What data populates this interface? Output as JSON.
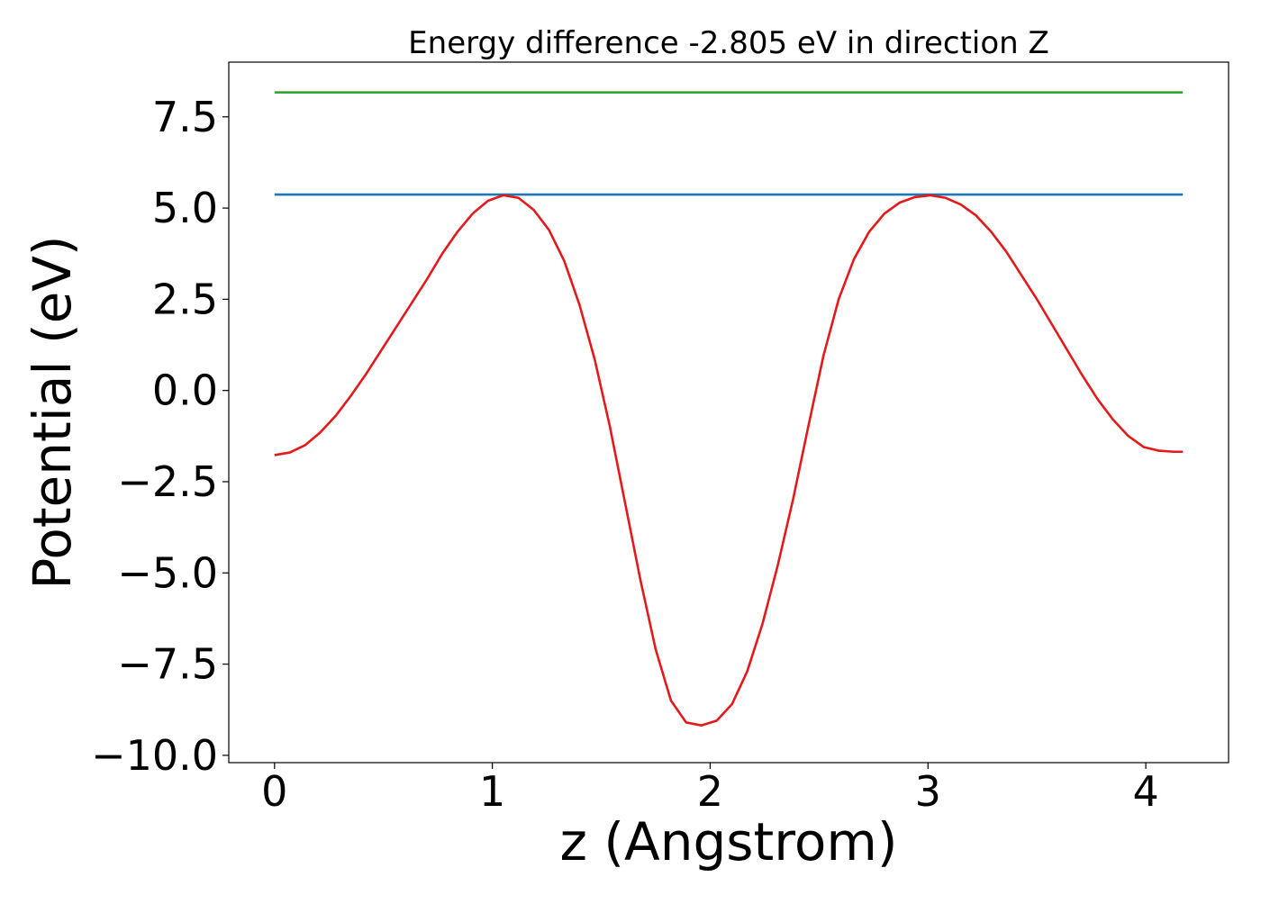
{
  "chart_data": {
    "type": "line",
    "title": "Energy difference -2.805 eV in direction Z",
    "xlabel": "z (Angstrom)",
    "ylabel": "Potential (eV)",
    "xlim": [
      -0.21,
      4.38
    ],
    "ylim": [
      -10.2,
      9.0
    ],
    "x_ticks": [
      0,
      1,
      2,
      3,
      4
    ],
    "x_tick_labels": [
      "0",
      "1",
      "2",
      "3",
      "4"
    ],
    "y_ticks": [
      -10.0,
      -7.5,
      -5.0,
      -2.5,
      0.0,
      2.5,
      5.0,
      7.5
    ],
    "y_tick_labels": [
      "−10.0",
      "−7.5",
      "−5.0",
      "−2.5",
      "0.0",
      "2.5",
      "5.0",
      "7.5"
    ],
    "grid": false,
    "legend": false,
    "series": [
      {
        "color": "#2ca02c",
        "x": [
          0,
          4.17
        ],
        "y": [
          8.17,
          8.17
        ]
      },
      {
        "color": "#1f77b4",
        "x": [
          0,
          4.17
        ],
        "y": [
          5.37,
          5.37
        ]
      },
      {
        "color": "#e31a1c",
        "x": [
          0,
          0.07,
          0.14,
          0.21,
          0.28,
          0.35,
          0.42,
          0.49,
          0.56,
          0.63,
          0.7,
          0.77,
          0.84,
          0.91,
          0.98,
          1.05,
          1.12,
          1.19,
          1.26,
          1.33,
          1.4,
          1.47,
          1.54,
          1.61,
          1.68,
          1.75,
          1.82,
          1.89,
          1.96,
          2.03,
          2.1,
          2.17,
          2.24,
          2.31,
          2.38,
          2.45,
          2.52,
          2.59,
          2.66,
          2.73,
          2.8,
          2.87,
          2.94,
          3.01,
          3.08,
          3.15,
          3.22,
          3.29,
          3.36,
          3.43,
          3.5,
          3.57,
          3.64,
          3.71,
          3.78,
          3.85,
          3.92,
          3.99,
          4.06,
          4.13,
          4.17
        ],
        "y": [
          -1.77,
          -1.7,
          -1.5,
          -1.15,
          -0.7,
          -0.15,
          0.45,
          1.1,
          1.75,
          2.4,
          3.05,
          3.75,
          4.35,
          4.85,
          5.2,
          5.35,
          5.28,
          4.95,
          4.4,
          3.55,
          2.35,
          0.85,
          -1.0,
          -3.1,
          -5.2,
          -7.1,
          -8.5,
          -9.1,
          -9.18,
          -9.05,
          -8.6,
          -7.7,
          -6.4,
          -4.8,
          -3.0,
          -1.0,
          0.95,
          2.5,
          3.6,
          4.35,
          4.85,
          5.15,
          5.3,
          5.35,
          5.28,
          5.1,
          4.8,
          4.35,
          3.8,
          3.15,
          2.5,
          1.8,
          1.1,
          0.4,
          -0.25,
          -0.8,
          -1.25,
          -1.55,
          -1.65,
          -1.68,
          -1.68
        ]
      }
    ]
  }
}
